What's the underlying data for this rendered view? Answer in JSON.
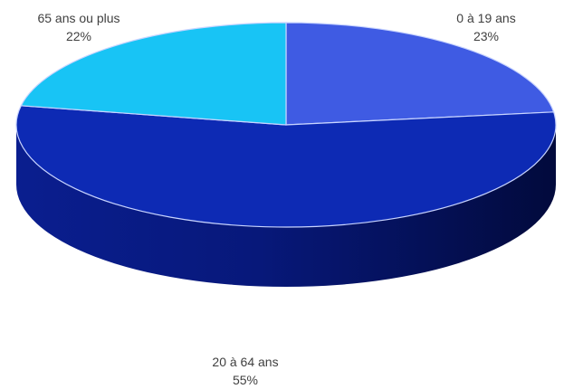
{
  "chart_data": {
    "type": "pie",
    "style": "3d",
    "slices": [
      {
        "label": "0 à 19 ans",
        "value": 23,
        "display": "23%",
        "color": "#3f5be3"
      },
      {
        "label": "20 à 64 ans",
        "value": 55,
        "display": "55%",
        "color": "#0d2ab4"
      },
      {
        "label": "65 ans ou plus",
        "value": 22,
        "display": "22%",
        "color": "#18c4f5"
      }
    ],
    "side_color": "#061670",
    "edge_color": "#c8d4ff"
  }
}
